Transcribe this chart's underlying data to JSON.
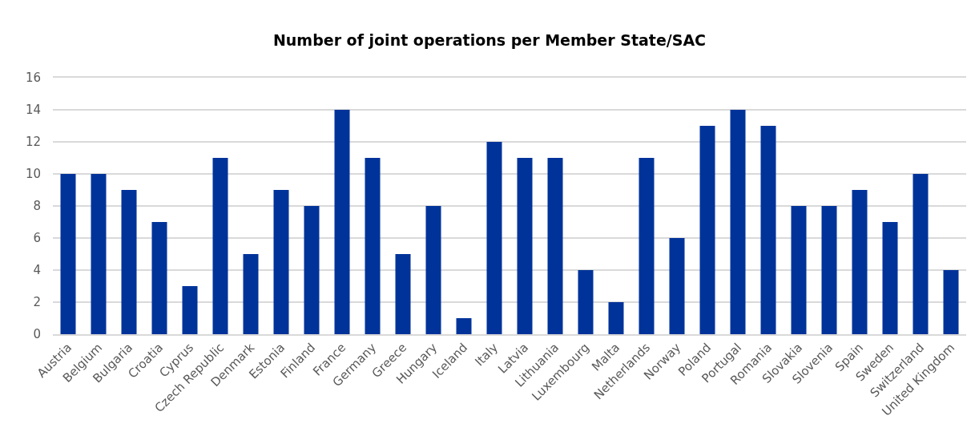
{
  "chart_data": {
    "type": "bar",
    "title": "Number of joint operations per Member State/SAC",
    "categories": [
      "Austria",
      "Belgium",
      "Bulgaria",
      "Croatia",
      "Cyprus",
      "Czech Republic",
      "Denmark",
      "Estonia",
      "Finland",
      "France",
      "Germany",
      "Greece",
      "Hungary",
      "Iceland",
      "Italy",
      "Latvia",
      "Lithuania",
      "Luxembourg",
      "Malta",
      "Netherlands",
      "Norway",
      "Poland",
      "Portugal",
      "Romania",
      "Slovakia",
      "Slovenia",
      "Spain",
      "Sweden",
      "Switzerland",
      "United Kingdom"
    ],
    "values": [
      10,
      10,
      9,
      7,
      3,
      11,
      5,
      9,
      8,
      14,
      11,
      5,
      8,
      1,
      12,
      11,
      11,
      4,
      2,
      11,
      6,
      13,
      14,
      13,
      8,
      8,
      9,
      7,
      10,
      4
    ],
    "color": "#003399",
    "ylim": [
      0,
      16
    ],
    "yticks": [
      0,
      2,
      4,
      6,
      8,
      10,
      12,
      14,
      16
    ],
    "grid": "y"
  }
}
